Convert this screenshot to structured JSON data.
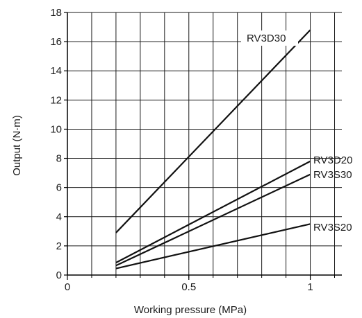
{
  "chart_data": {
    "type": "line",
    "title": "",
    "xlabel": "Working pressure (MPa)",
    "ylabel": "Output (N·m)",
    "xlim": [
      0,
      1.13
    ],
    "ylim": [
      0,
      18
    ],
    "x_ticks": [
      0,
      0.5,
      1
    ],
    "x_tick_labels": [
      "0",
      "0.5",
      "1"
    ],
    "y_ticks": [
      0,
      2,
      4,
      6,
      8,
      10,
      12,
      14,
      16,
      18
    ],
    "y_tick_labels": [
      "0",
      "2",
      "4",
      "6",
      "8",
      "10",
      "12",
      "14",
      "16",
      "18"
    ],
    "grid": true,
    "legend": "none",
    "series": [
      {
        "name": "RV3D30",
        "x": [
          0.2,
          1.0
        ],
        "y": [
          2.9,
          16.8
        ]
      },
      {
        "name": "RV3D20",
        "x": [
          0.2,
          1.0
        ],
        "y": [
          0.85,
          7.8
        ]
      },
      {
        "name": "RV3S30",
        "x": [
          0.2,
          1.0
        ],
        "y": [
          0.65,
          6.9
        ]
      },
      {
        "name": "RV3S20",
        "x": [
          0.2,
          1.0
        ],
        "y": [
          0.45,
          3.5
        ]
      }
    ]
  }
}
